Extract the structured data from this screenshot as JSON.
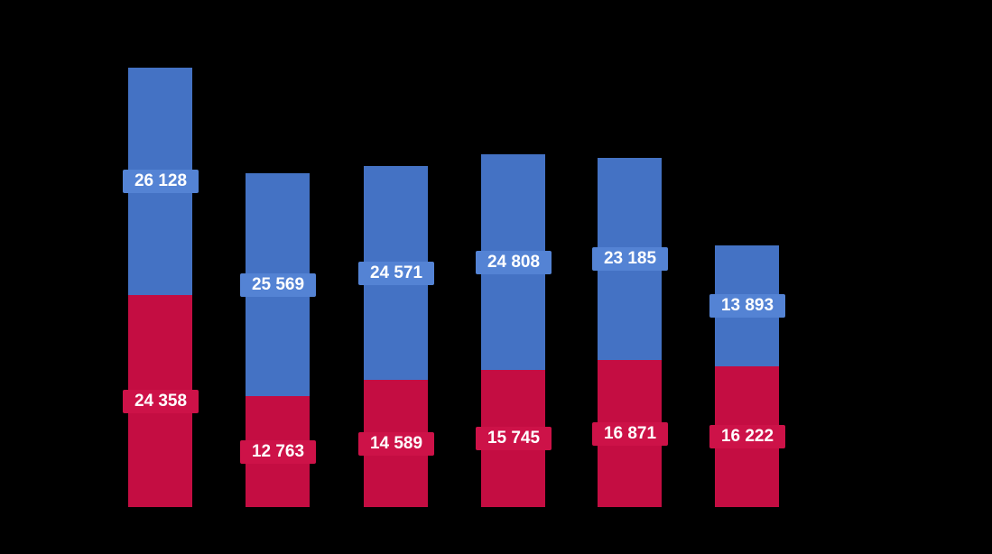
{
  "background_color": "#000000",
  "chart_data": {
    "type": "bar",
    "stacked": true,
    "orientation": "vertical",
    "title": "",
    "axes_visible": false,
    "gridlines_visible": false,
    "legend_visible": false,
    "category_labels_visible": false,
    "num_categories": 6,
    "value_label_text_color": "#FFFFFF",
    "series": [
      {
        "name": "bottom-series-red",
        "color": "#C40D42",
        "label_bg_color": "#CD1248",
        "values": [
          24358,
          12763,
          14589,
          15745,
          16871,
          16222
        ],
        "labels": [
          "24 358",
          "12 763",
          "14 589",
          "15 745",
          "16 871",
          "16 222"
        ]
      },
      {
        "name": "top-series-blue",
        "color": "#4472C4",
        "label_bg_color": "#5483D4",
        "values": [
          26128,
          25569,
          24571,
          24808,
          23185,
          13893
        ],
        "labels": [
          "26 128",
          "25 569",
          "24 571",
          "24 808",
          "23 185",
          "13 893"
        ]
      }
    ]
  }
}
